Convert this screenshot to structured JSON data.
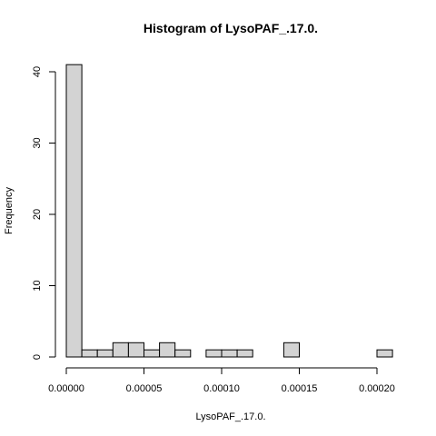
{
  "chart_data": {
    "type": "bar",
    "title": "Histogram of LysoPAF_.17.0.",
    "xlabel": "LysoPAF_.17.0.",
    "ylabel": "Frequency",
    "bin_width": 1e-05,
    "bins": [
      {
        "start": 0.0,
        "end": 1e-05,
        "count": 41
      },
      {
        "start": 1e-05,
        "end": 2e-05,
        "count": 1
      },
      {
        "start": 2e-05,
        "end": 3e-05,
        "count": 1
      },
      {
        "start": 3e-05,
        "end": 4e-05,
        "count": 2
      },
      {
        "start": 4e-05,
        "end": 5e-05,
        "count": 2
      },
      {
        "start": 5e-05,
        "end": 6e-05,
        "count": 1
      },
      {
        "start": 6e-05,
        "end": 7e-05,
        "count": 2
      },
      {
        "start": 7e-05,
        "end": 8e-05,
        "count": 1
      },
      {
        "start": 8e-05,
        "end": 9e-05,
        "count": 0
      },
      {
        "start": 9e-05,
        "end": 0.0001,
        "count": 1
      },
      {
        "start": 0.0001,
        "end": 0.00011,
        "count": 1
      },
      {
        "start": 0.00011,
        "end": 0.00012,
        "count": 1
      },
      {
        "start": 0.00012,
        "end": 0.00013,
        "count": 0
      },
      {
        "start": 0.00013,
        "end": 0.00014,
        "count": 0
      },
      {
        "start": 0.00014,
        "end": 0.00015,
        "count": 2
      },
      {
        "start": 0.00015,
        "end": 0.00016,
        "count": 0
      },
      {
        "start": 0.00016,
        "end": 0.00017,
        "count": 0
      },
      {
        "start": 0.00017,
        "end": 0.00018,
        "count": 0
      },
      {
        "start": 0.00018,
        "end": 0.00019,
        "count": 0
      },
      {
        "start": 0.00019,
        "end": 0.0002,
        "count": 0
      },
      {
        "start": 0.0002,
        "end": 0.00021,
        "count": 1
      }
    ],
    "x_ticks": [
      {
        "value": 0.0,
        "label": "0.00000"
      },
      {
        "value": 5e-05,
        "label": "0.00005"
      },
      {
        "value": 0.0001,
        "label": "0.00010"
      },
      {
        "value": 0.00015,
        "label": "0.00015"
      },
      {
        "value": 0.0002,
        "label": "0.00020"
      }
    ],
    "y_ticks": [
      {
        "value": 0,
        "label": "0"
      },
      {
        "value": 10,
        "label": "10"
      },
      {
        "value": 20,
        "label": "20"
      },
      {
        "value": 30,
        "label": "30"
      },
      {
        "value": 40,
        "label": "40"
      }
    ],
    "xlim": [
      0.0,
      0.0002
    ],
    "ylim": [
      0,
      40
    ],
    "bar_fill": "#d3d3d3",
    "bar_stroke": "#000000",
    "grid": false,
    "legend": "none"
  }
}
